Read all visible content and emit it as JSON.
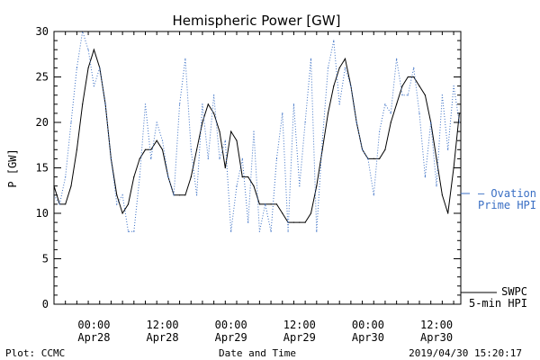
{
  "chart_data": {
    "type": "line",
    "title": "Hemispheric Power [GW]",
    "xlabel": "Date and Time",
    "ylabel": "P [GW]",
    "ylim": [
      0,
      30
    ],
    "yticks": [
      0,
      5,
      10,
      15,
      20,
      25,
      30
    ],
    "xlim": [
      "2019-04-27 17:00",
      "2019-04-30 16:15"
    ],
    "xticks": [
      {
        "x": "2019-04-28 00:00",
        "time": "00:00",
        "date": "Apr28"
      },
      {
        "x": "2019-04-28 12:00",
        "time": "12:00",
        "date": "Apr28"
      },
      {
        "x": "2019-04-29 00:00",
        "time": "00:00",
        "date": "Apr29"
      },
      {
        "x": "2019-04-29 12:00",
        "time": "12:00",
        "date": "Apr29"
      },
      {
        "x": "2019-04-30 00:00",
        "time": "00:00",
        "date": "Apr30"
      },
      {
        "x": "2019-04-30 12:00",
        "time": "12:00",
        "date": "Apr30"
      }
    ],
    "grid": false,
    "series": [
      {
        "name": "SWPC 5-min HPI",
        "legend_lines": [
          "SWPC",
          "5-min HPI"
        ],
        "color": "#000000",
        "style": "solid",
        "x": [
          "2019-04-27 17:00",
          "2019-04-27 18:00",
          "2019-04-27 19:00",
          "2019-04-27 20:00",
          "2019-04-27 21:00",
          "2019-04-27 22:00",
          "2019-04-27 23:00",
          "2019-04-28 00:00",
          "2019-04-28 01:00",
          "2019-04-28 02:00",
          "2019-04-28 03:00",
          "2019-04-28 04:00",
          "2019-04-28 05:00",
          "2019-04-28 06:00",
          "2019-04-28 07:00",
          "2019-04-28 08:00",
          "2019-04-28 09:00",
          "2019-04-28 10:00",
          "2019-04-28 11:00",
          "2019-04-28 12:00",
          "2019-04-28 13:00",
          "2019-04-28 14:00",
          "2019-04-28 15:00",
          "2019-04-28 16:00",
          "2019-04-28 17:00",
          "2019-04-28 18:00",
          "2019-04-28 19:00",
          "2019-04-28 20:00",
          "2019-04-28 21:00",
          "2019-04-28 22:00",
          "2019-04-28 23:00",
          "2019-04-29 00:00",
          "2019-04-29 01:00",
          "2019-04-29 02:00",
          "2019-04-29 03:00",
          "2019-04-29 04:00",
          "2019-04-29 05:00",
          "2019-04-29 06:00",
          "2019-04-29 07:00",
          "2019-04-29 08:00",
          "2019-04-29 09:00",
          "2019-04-29 10:00",
          "2019-04-29 11:00",
          "2019-04-29 12:00",
          "2019-04-29 13:00",
          "2019-04-29 14:00",
          "2019-04-29 15:00",
          "2019-04-29 16:00",
          "2019-04-29 17:00",
          "2019-04-29 18:00",
          "2019-04-29 19:00",
          "2019-04-29 20:00",
          "2019-04-29 21:00",
          "2019-04-29 22:00",
          "2019-04-29 23:00",
          "2019-04-30 00:00",
          "2019-04-30 01:00",
          "2019-04-30 02:00",
          "2019-04-30 03:00",
          "2019-04-30 04:00",
          "2019-04-30 05:00",
          "2019-04-30 06:00",
          "2019-04-30 07:00",
          "2019-04-30 08:00",
          "2019-04-30 09:00",
          "2019-04-30 10:00",
          "2019-04-30 11:00",
          "2019-04-30 12:00",
          "2019-04-30 13:00",
          "2019-04-30 14:00",
          "2019-04-30 15:00",
          "2019-04-30 16:00"
        ],
        "values": [
          13,
          11,
          11,
          13,
          17,
          22,
          26,
          28,
          26,
          22,
          16,
          12,
          10,
          11,
          14,
          16,
          17,
          17,
          18,
          17,
          14,
          12,
          12,
          12,
          14,
          17,
          20,
          22,
          21,
          19,
          15,
          19,
          18,
          14,
          14,
          13,
          11,
          11,
          11,
          11,
          10,
          9,
          9,
          9,
          9,
          10,
          13,
          17,
          21,
          24,
          26,
          27,
          24,
          20,
          17,
          16,
          16,
          16,
          17,
          20,
          22,
          24,
          25,
          25,
          24,
          23,
          20,
          16,
          12,
          10,
          15,
          21
        ]
      },
      {
        "name": "Ovation Prime HPI",
        "legend_lines": [
          "— Ovation",
          "Prime HPI"
        ],
        "color": "#3a6fc4",
        "style": "dotted",
        "x": [
          "2019-04-27 17:00",
          "2019-04-27 18:00",
          "2019-04-27 19:00",
          "2019-04-27 20:00",
          "2019-04-27 21:00",
          "2019-04-27 22:00",
          "2019-04-27 23:00",
          "2019-04-28 00:00",
          "2019-04-28 01:00",
          "2019-04-28 02:00",
          "2019-04-28 03:00",
          "2019-04-28 04:00",
          "2019-04-28 05:00",
          "2019-04-28 06:00",
          "2019-04-28 07:00",
          "2019-04-28 08:00",
          "2019-04-28 09:00",
          "2019-04-28 10:00",
          "2019-04-28 11:00",
          "2019-04-28 12:00",
          "2019-04-28 13:00",
          "2019-04-28 14:00",
          "2019-04-28 15:00",
          "2019-04-28 16:00",
          "2019-04-28 17:00",
          "2019-04-28 18:00",
          "2019-04-28 19:00",
          "2019-04-28 20:00",
          "2019-04-28 21:00",
          "2019-04-28 22:00",
          "2019-04-28 23:00",
          "2019-04-29 00:00",
          "2019-04-29 01:00",
          "2019-04-29 02:00",
          "2019-04-29 03:00",
          "2019-04-29 04:00",
          "2019-04-29 05:00",
          "2019-04-29 06:00",
          "2019-04-29 07:00",
          "2019-04-29 08:00",
          "2019-04-29 09:00",
          "2019-04-29 10:00",
          "2019-04-29 11:00",
          "2019-04-29 12:00",
          "2019-04-29 13:00",
          "2019-04-29 14:00",
          "2019-04-29 15:00",
          "2019-04-29 16:00",
          "2019-04-29 17:00",
          "2019-04-29 18:00",
          "2019-04-29 19:00",
          "2019-04-29 20:00",
          "2019-04-29 21:00",
          "2019-04-29 22:00",
          "2019-04-29 23:00",
          "2019-04-30 00:00",
          "2019-04-30 01:00",
          "2019-04-30 02:00",
          "2019-04-30 03:00",
          "2019-04-30 04:00",
          "2019-04-30 05:00",
          "2019-04-30 06:00",
          "2019-04-30 07:00",
          "2019-04-30 08:00",
          "2019-04-30 09:00",
          "2019-04-30 10:00",
          "2019-04-30 11:00",
          "2019-04-30 12:00",
          "2019-04-30 13:00",
          "2019-04-30 14:00",
          "2019-04-30 15:00",
          "2019-04-30 16:00"
        ],
        "values": [
          12,
          11,
          14,
          20,
          26,
          30,
          28,
          24,
          26,
          22,
          16,
          11,
          12,
          8,
          8,
          14,
          22,
          16,
          20,
          18,
          14,
          12,
          22,
          27,
          17,
          12,
          22,
          16,
          23,
          16,
          18,
          8,
          13,
          16,
          9,
          19,
          8,
          11,
          8,
          16,
          21,
          8,
          22,
          13,
          20,
          27,
          8,
          18,
          26,
          29,
          22,
          26,
          24,
          20,
          17,
          16,
          12,
          19,
          22,
          21,
          27,
          23,
          23,
          26,
          21,
          14,
          20,
          13,
          23,
          17,
          24,
          20
        ]
      }
    ]
  },
  "footer": {
    "plot_credit": "Plot: CCMC",
    "timestamp": "2019/04/30 15:20:17"
  }
}
